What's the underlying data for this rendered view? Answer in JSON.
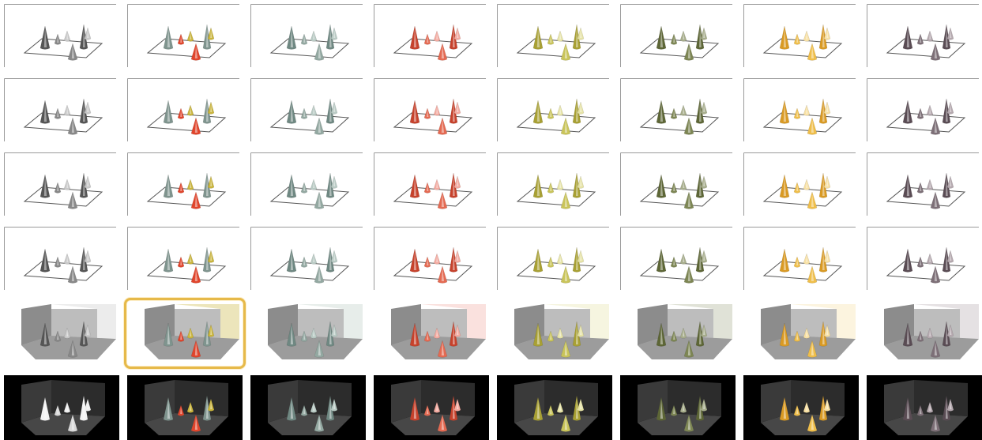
{
  "gallery": {
    "selected": {
      "row": 4,
      "col": 1
    },
    "palettes": [
      {
        "id": "gray",
        "colors": [
          "#555555",
          "#888888",
          "#c8c8c8"
        ]
      },
      {
        "id": "mixed",
        "colors": [
          "#7f948e",
          "#e0452c",
          "#c9b43c"
        ]
      },
      {
        "id": "sage",
        "colors": [
          "#6f8882",
          "#93a8a1",
          "#b9cac4"
        ]
      },
      {
        "id": "red",
        "colors": [
          "#c6422c",
          "#e46a52",
          "#f2aaa0"
        ]
      },
      {
        "id": "olive",
        "colors": [
          "#a8a034",
          "#c9c45a",
          "#e6e3a6"
        ]
      },
      {
        "id": "moss",
        "colors": [
          "#5d6636",
          "#7d8654",
          "#a7ad8c"
        ]
      },
      {
        "id": "amber",
        "colors": [
          "#d99a24",
          "#efbe4a",
          "#f7e0a4"
        ]
      },
      {
        "id": "plum",
        "colors": [
          "#5a4c54",
          "#7d6f77",
          "#b4a8ae"
        ]
      }
    ],
    "rows": [
      {
        "style": "flat-plane"
      },
      {
        "style": "flat-plane"
      },
      {
        "style": "flat-plane"
      },
      {
        "style": "flat-plane"
      },
      {
        "style": "boxed-light"
      },
      {
        "style": "boxed-dark"
      }
    ],
    "colors": {
      "selection": "#e6b94a",
      "plane_line": "#555555",
      "dark_bg": "#000000"
    }
  }
}
